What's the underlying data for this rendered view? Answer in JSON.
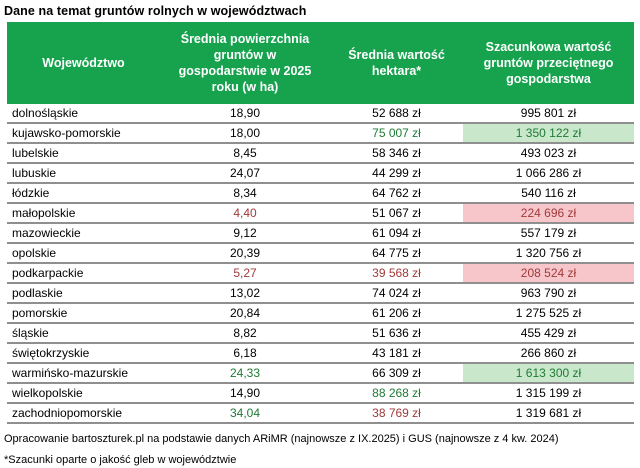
{
  "colors": {
    "header_bg": "#17a24e",
    "header_text": "#ffffff",
    "positive_text": "#1e7b34",
    "negative_text": "#a03a3a",
    "positive_fill": "#c9e8cb",
    "negative_fill": "#f7c6ca",
    "row_border": "#8f8f8f"
  },
  "chart_data": {
    "type": "table",
    "title": "Dane na temat gruntów rolnych w województwach",
    "columns": [
      "Województwo",
      "Średnia powierzchnia gruntów w gospodarstwie w 2025 roku (w ha)",
      "Średnia wartość hektara*",
      "Szacunkowa wartość gruntów przeciętnego gospodarstwa"
    ],
    "rows": [
      {
        "wojewodztwo": "dolnośląskie",
        "powierzchnia_ha": "18,90",
        "wartosc_hektara": "52 688 zł",
        "wartosc_gospodarstwa": "995 801 zł"
      },
      {
        "wojewodztwo": "kujawsko-pomorskie",
        "powierzchnia_ha": "18,00",
        "wartosc_hektara": "75 007 zł",
        "wartosc_gospodarstwa": "1 350 122 zł",
        "highlight": {
          "wartosc_hektara": "positive",
          "wartosc_gospodarstwa": "positive-fill"
        }
      },
      {
        "wojewodztwo": "lubelskie",
        "powierzchnia_ha": "8,45",
        "wartosc_hektara": "58 346 zł",
        "wartosc_gospodarstwa": "493 023 zł"
      },
      {
        "wojewodztwo": "lubuskie",
        "powierzchnia_ha": "24,07",
        "wartosc_hektara": "44 299 zł",
        "wartosc_gospodarstwa": "1 066 286 zł"
      },
      {
        "wojewodztwo": "łódzkie",
        "powierzchnia_ha": "8,34",
        "wartosc_hektara": "64 762 zł",
        "wartosc_gospodarstwa": "540 116 zł"
      },
      {
        "wojewodztwo": "małopolskie",
        "powierzchnia_ha": "4,40",
        "wartosc_hektara": "51 067 zł",
        "wartosc_gospodarstwa": "224 696 zł",
        "highlight": {
          "powierzchnia_ha": "negative",
          "wartosc_gospodarstwa": "negative-fill"
        }
      },
      {
        "wojewodztwo": "mazowieckie",
        "powierzchnia_ha": "9,12",
        "wartosc_hektara": "61 094 zł",
        "wartosc_gospodarstwa": "557 179 zł"
      },
      {
        "wojewodztwo": "opolskie",
        "powierzchnia_ha": "20,39",
        "wartosc_hektara": "64 775 zł",
        "wartosc_gospodarstwa": "1 320 756 zł"
      },
      {
        "wojewodztwo": "podkarpackie",
        "powierzchnia_ha": "5,27",
        "wartosc_hektara": "39 568 zł",
        "wartosc_gospodarstwa": "208 524 zł",
        "highlight": {
          "powierzchnia_ha": "negative",
          "wartosc_hektara": "negative",
          "wartosc_gospodarstwa": "negative-fill"
        }
      },
      {
        "wojewodztwo": "podlaskie",
        "powierzchnia_ha": "13,02",
        "wartosc_hektara": "74 024 zł",
        "wartosc_gospodarstwa": "963 790 zł"
      },
      {
        "wojewodztwo": "pomorskie",
        "powierzchnia_ha": "20,84",
        "wartosc_hektara": "61 206 zł",
        "wartosc_gospodarstwa": "1 275 525 zł"
      },
      {
        "wojewodztwo": "śląskie",
        "powierzchnia_ha": "8,82",
        "wartosc_hektara": "51 636 zł",
        "wartosc_gospodarstwa": "455 429 zł"
      },
      {
        "wojewodztwo": "świętokrzyskie",
        "powierzchnia_ha": "6,18",
        "wartosc_hektara": "43 181 zł",
        "wartosc_gospodarstwa": "266 860 zł"
      },
      {
        "wojewodztwo": "warmińsko-mazurskie",
        "powierzchnia_ha": "24,33",
        "wartosc_hektara": "66 309 zł",
        "wartosc_gospodarstwa": "1 613 300 zł",
        "highlight": {
          "powierzchnia_ha": "positive",
          "wartosc_gospodarstwa": "positive-fill"
        }
      },
      {
        "wojewodztwo": "wielkopolskie",
        "powierzchnia_ha": "14,90",
        "wartosc_hektara": "88 268 zł",
        "wartosc_gospodarstwa": "1 315 199 zł",
        "highlight": {
          "wartosc_hektara": "positive"
        }
      },
      {
        "wojewodztwo": "zachodniopomorskie",
        "powierzchnia_ha": "34,04",
        "wartosc_hektara": "38 769 zł",
        "wartosc_gospodarstwa": "1 319 681 zł",
        "highlight": {
          "powierzchnia_ha": "positive",
          "wartosc_hektara": "negative"
        }
      }
    ]
  },
  "footnotes": [
    "Opracowanie bartoszturek.pl na podstawie danych ARiMR (najnowsze z IX.2025) i GUS (najnowsze z 4 kw. 2024)",
    "*Szacunki oparte o jakość gleb w województwie"
  ]
}
